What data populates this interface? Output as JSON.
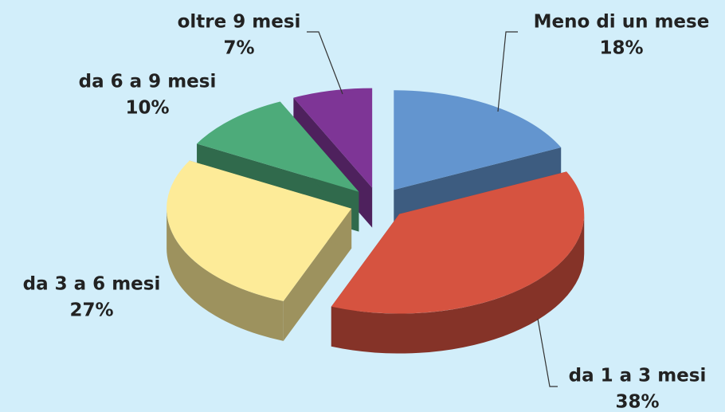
{
  "chart_data": {
    "type": "pie",
    "categories": [
      "Meno di un mese",
      "da 1 a 3 mesi",
      "da 3 a 6 mesi",
      "da 6 a 9 mesi",
      "oltre 9 mesi"
    ],
    "values": [
      18,
      38,
      27,
      10,
      7
    ],
    "value_labels": [
      "18%",
      "38%",
      "27%",
      "10%",
      "7%"
    ],
    "colors": [
      "#6395cf",
      "#d65340",
      "#fdeb98",
      "#4dab7a",
      "#7e3596"
    ]
  }
}
